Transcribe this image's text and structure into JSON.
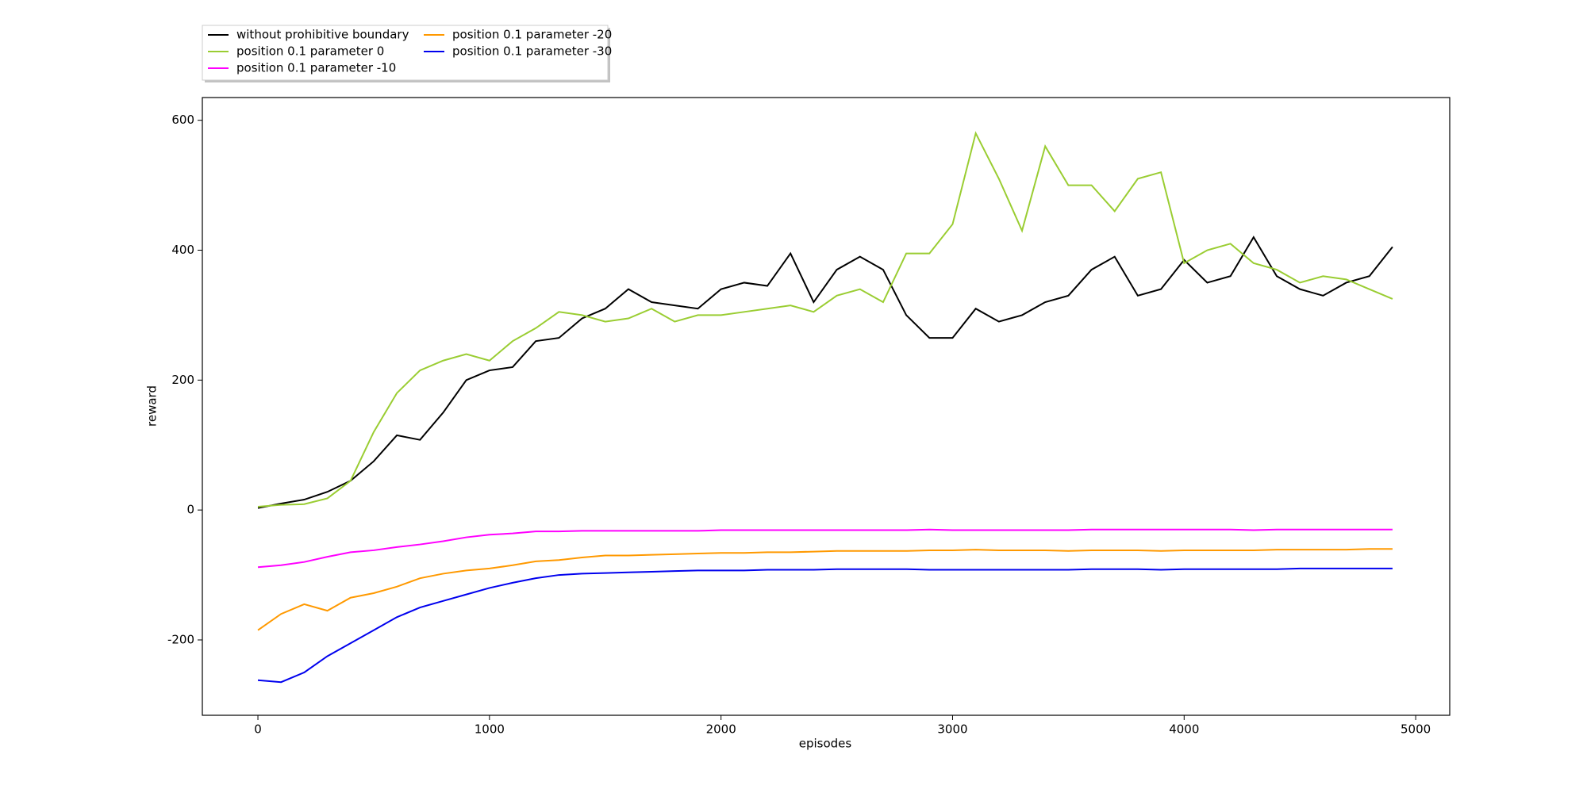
{
  "chart_data": {
    "type": "line",
    "x_label": "episodes",
    "y_label": "reward",
    "x": [
      0,
      100,
      200,
      300,
      400,
      500,
      600,
      700,
      800,
      900,
      1000,
      1100,
      1200,
      1300,
      1400,
      1500,
      1600,
      1700,
      1800,
      1900,
      2000,
      2100,
      2200,
      2300,
      2400,
      2500,
      2600,
      2700,
      2800,
      2900,
      3000,
      3100,
      3200,
      3300,
      3400,
      3500,
      3600,
      3700,
      3800,
      3900,
      4000,
      4100,
      4200,
      4300,
      4400,
      4500,
      4600,
      4700,
      4800,
      4900
    ],
    "series": [
      {
        "name": "without prohibitive boundary",
        "color": "#000000",
        "values": [
          3,
          10,
          16,
          28,
          45,
          75,
          115,
          108,
          150,
          200,
          215,
          220,
          260,
          265,
          295,
          310,
          340,
          320,
          315,
          310,
          340,
          350,
          345,
          395,
          320,
          370,
          390,
          370,
          300,
          265,
          265,
          310,
          290,
          300,
          320,
          330,
          370,
          390,
          330,
          340,
          385,
          350,
          360,
          420,
          360,
          340,
          330,
          350,
          360,
          405
        ]
      },
      {
        "name": "position 0.1 parameter 0",
        "color": "#9acd32",
        "values": [
          5,
          8,
          9,
          18,
          45,
          120,
          180,
          215,
          230,
          240,
          230,
          260,
          280,
          305,
          300,
          290,
          295,
          310,
          290,
          300,
          300,
          305,
          310,
          315,
          305,
          330,
          340,
          320,
          395,
          395,
          440,
          580,
          510,
          430,
          560,
          500,
          500,
          460,
          510,
          520,
          380,
          400,
          410,
          380,
          370,
          350,
          360,
          355,
          340,
          325
        ]
      },
      {
        "name": "position 0.1 parameter -10",
        "color": "#ff00ff",
        "values": [
          -88,
          -85,
          -80,
          -72,
          -65,
          -62,
          -57,
          -53,
          -48,
          -42,
          -38,
          -36,
          -33,
          -33,
          -32,
          -32,
          -32,
          -32,
          -32,
          -32,
          -31,
          -31,
          -31,
          -31,
          -31,
          -31,
          -31,
          -31,
          -31,
          -30,
          -31,
          -31,
          -31,
          -31,
          -31,
          -31,
          -30,
          -30,
          -30,
          -30,
          -30,
          -30,
          -30,
          -31,
          -30,
          -30,
          -30,
          -30,
          -30,
          -30
        ]
      },
      {
        "name": "position 0.1 parameter -20",
        "color": "#ff9900",
        "values": [
          -185,
          -160,
          -145,
          -155,
          -135,
          -128,
          -118,
          -105,
          -98,
          -93,
          -90,
          -85,
          -79,
          -77,
          -73,
          -70,
          -70,
          -69,
          -68,
          -67,
          -66,
          -66,
          -65,
          -65,
          -64,
          -63,
          -63,
          -63,
          -63,
          -62,
          -62,
          -61,
          -62,
          -62,
          -62,
          -63,
          -62,
          -62,
          -62,
          -63,
          -62,
          -62,
          -62,
          -62,
          -61,
          -61,
          -61,
          -61,
          -60,
          -60
        ]
      },
      {
        "name": "position 0.1 parameter -30",
        "color": "#0000ee",
        "values": [
          -262,
          -265,
          -250,
          -225,
          -205,
          -185,
          -165,
          -150,
          -140,
          -130,
          -120,
          -112,
          -105,
          -100,
          -98,
          -97,
          -96,
          -95,
          -94,
          -93,
          -93,
          -93,
          -92,
          -92,
          -92,
          -91,
          -91,
          -91,
          -91,
          -92,
          -92,
          -92,
          -92,
          -92,
          -92,
          -92,
          -91,
          -91,
          -91,
          -92,
          -91,
          -91,
          -91,
          -91,
          -91,
          -90,
          -90,
          -90,
          -90,
          -90
        ]
      }
    ],
    "xlim": [
      -240,
      5147
    ],
    "ylim": [
      -316,
      635
    ],
    "xticks": [
      0,
      1000,
      2000,
      3000,
      4000,
      5000
    ],
    "yticks": [
      -200,
      0,
      200,
      400,
      600
    ],
    "legend": "upper left outside"
  }
}
